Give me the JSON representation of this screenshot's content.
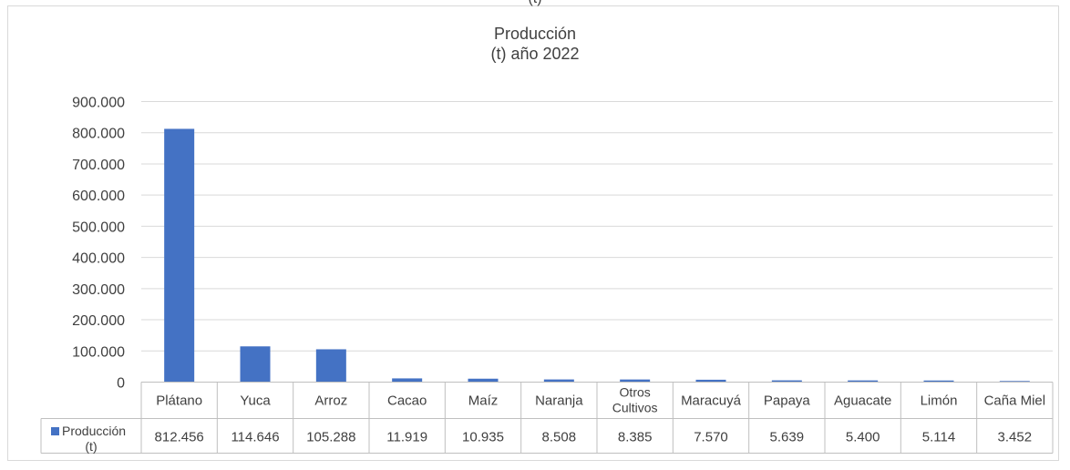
{
  "top_cut_text": "(t)",
  "chart_data": {
    "type": "bar",
    "title_line1": "Producción",
    "title_line2": "(t) año 2022",
    "categories": [
      "Plátano",
      "Yuca",
      "Arroz",
      "Cacao",
      "Maíz",
      "Naranja",
      "Otros Cultivos",
      "Maracuyá",
      "Papaya",
      "Aguacate",
      "Limón",
      "Caña Miel"
    ],
    "series": [
      {
        "name": "Producción (t)",
        "color": "#4472c4",
        "values": [
          812456,
          114646,
          105288,
          11919,
          10935,
          8508,
          8385,
          7570,
          5639,
          5400,
          5114,
          3452
        ],
        "value_labels": [
          "812.456",
          "114.646",
          "105.288",
          "11.919",
          "10.935",
          "8.508",
          "8.385",
          "7.570",
          "5.639",
          "5.400",
          "5.114",
          "3.452"
        ]
      }
    ],
    "ylim": [
      0,
      900000
    ],
    "ytick_labels": [
      "0",
      "100.000",
      "200.000",
      "300.000",
      "400.000",
      "500.000",
      "600.000",
      "700.000",
      "800.000",
      "900.000"
    ],
    "grid": true,
    "legend": "data-table"
  }
}
